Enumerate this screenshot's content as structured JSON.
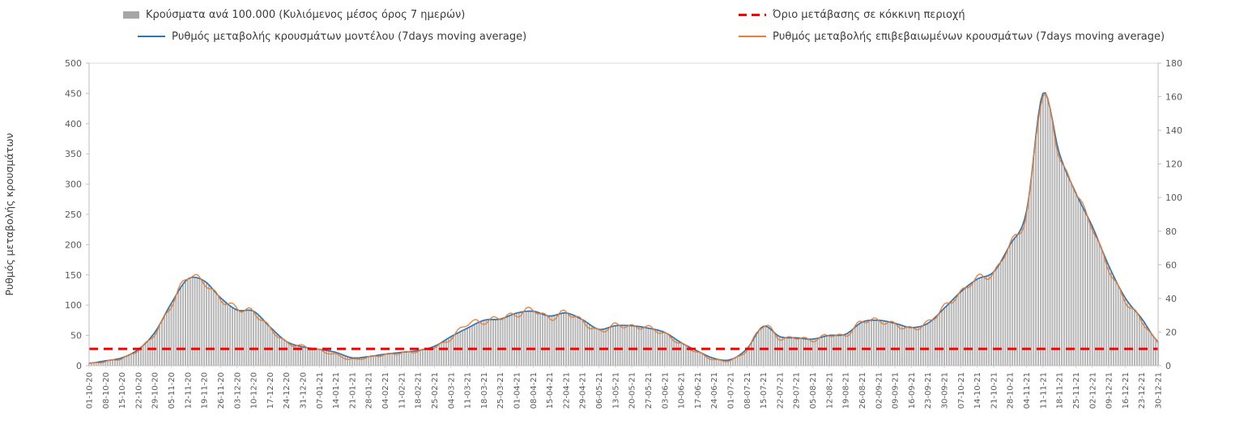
{
  "chart_data": {
    "type": "combo",
    "title": "",
    "legend_position": "top",
    "grid": "off",
    "x_sampling": "weekly tick labels; series are daily 7-day moving averages",
    "x": [
      "01-10-20",
      "08-10-20",
      "15-10-20",
      "22-10-20",
      "29-10-20",
      "05-11-20",
      "12-11-20",
      "19-11-20",
      "26-11-20",
      "03-12-20",
      "10-12-20",
      "17-12-20",
      "24-12-20",
      "31-12-20",
      "07-01-21",
      "14-01-21",
      "21-01-21",
      "28-01-21",
      "04-02-21",
      "11-02-21",
      "18-02-21",
      "25-02-21",
      "04-03-21",
      "11-03-21",
      "18-03-21",
      "25-03-21",
      "01-04-21",
      "08-04-21",
      "15-04-21",
      "22-04-21",
      "29-04-21",
      "06-05-21",
      "13-05-21",
      "20-05-21",
      "27-05-21",
      "03-06-21",
      "10-06-21",
      "17-06-21",
      "24-06-21",
      "01-07-21",
      "08-07-21",
      "15-07-21",
      "22-07-21",
      "29-07-21",
      "05-08-21",
      "12-08-21",
      "19-08-21",
      "26-08-21",
      "02-09-21",
      "09-09-21",
      "16-09-21",
      "23-09-21",
      "30-09-21",
      "07-10-21",
      "14-10-21",
      "21-10-21",
      "28-10-21",
      "04-11-21",
      "11-11-21",
      "18-11-21",
      "25-11-21",
      "02-12-21",
      "09-12-21",
      "16-12-21",
      "23-12-21",
      "30-12-21"
    ],
    "left_axis": {
      "label": "Ρυθμός μεταβολής κρουσμάτων",
      "min": 0,
      "max": 500,
      "step": 50
    },
    "right_axis": {
      "min": 0,
      "max": 180,
      "step": 20
    },
    "threshold": {
      "name": "Όριο μετάβασης σε κόκκινη περιοχή",
      "axis": "right",
      "value": 10,
      "color": "#ff0000",
      "style": "dashed"
    },
    "series": [
      {
        "name": "Κρούσματα ανά 100.000 (Κυλιόμενος μέσος όρος 7 ημερών)",
        "type": "bar",
        "axis": "right",
        "color": "#b3b3b3",
        "values": [
          1,
          3,
          5,
          10,
          20,
          37,
          51,
          50,
          40,
          33,
          32,
          23,
          14,
          11,
          10,
          8,
          5,
          5,
          7,
          8,
          9,
          12,
          17,
          22,
          27,
          28,
          31,
          32,
          30,
          31,
          27,
          22,
          24,
          24,
          22,
          20,
          14,
          9,
          4,
          4,
          10,
          23,
          17,
          17,
          16,
          18,
          19,
          26,
          27,
          25,
          23,
          25,
          34,
          44,
          51,
          56,
          72,
          92,
          162,
          126,
          103,
          83,
          59,
          40,
          28,
          14
        ]
      },
      {
        "name": "Ρυθμός μεταβολής κρουσμάτων μοντέλου (7days moving average)",
        "type": "line",
        "axis": "left",
        "color": "#2e75b6",
        "values": [
          4,
          8,
          13,
          27,
          55,
          103,
          143,
          140,
          112,
          92,
          90,
          64,
          40,
          31,
          27,
          22,
          13,
          15,
          19,
          22,
          25,
          32,
          48,
          62,
          75,
          77,
          87,
          90,
          82,
          87,
          76,
          60,
          66,
          66,
          62,
          55,
          38,
          24,
          12,
          10,
          28,
          65,
          48,
          46,
          44,
          50,
          52,
          72,
          75,
          70,
          63,
          70,
          95,
          122,
          143,
          155,
          200,
          255,
          450,
          350,
          285,
          230,
          165,
          112,
          78,
          40
        ]
      },
      {
        "name": "Ρυθμός μεταβολής επιβεβαιωμένων κρουσμάτων (7days moving average)",
        "type": "line",
        "axis": "left",
        "color": "#ed7d31",
        "oscillation": true,
        "values": [
          3,
          7,
          12,
          26,
          53,
          100,
          147,
          137,
          110,
          95,
          88,
          62,
          38,
          32,
          25,
          18,
          10,
          14,
          18,
          21,
          24,
          30,
          45,
          70,
          72,
          80,
          84,
          93,
          78,
          88,
          73,
          57,
          67,
          64,
          63,
          52,
          36,
          22,
          10,
          9,
          26,
          67,
          45,
          47,
          42,
          51,
          50,
          73,
          74,
          68,
          61,
          71,
          97,
          120,
          145,
          152,
          202,
          250,
          447,
          345,
          288,
          228,
          160,
          108,
          75,
          38
        ]
      }
    ]
  }
}
